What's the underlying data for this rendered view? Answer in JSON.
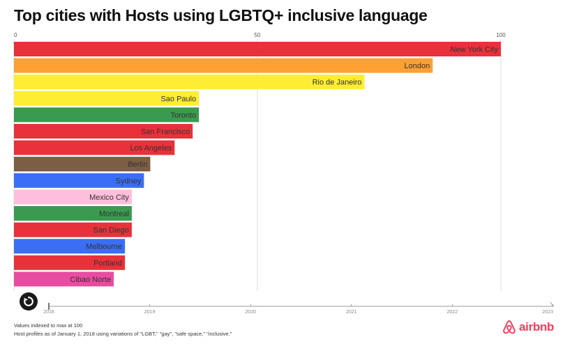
{
  "title": "Top cities with Hosts using LGBTQ+ inclusive language",
  "chart_data": {
    "type": "bar",
    "orientation": "horizontal",
    "title": "Top cities with Hosts using LGBTQ+ inclusive language",
    "xlim": [
      0,
      100
    ],
    "x_ticks": [
      "0",
      "50",
      "100"
    ],
    "categories": [
      "New York City",
      "London",
      "Rio de Janeiro",
      "Sao Paulo",
      "Toronto",
      "San Francisco",
      "Los Angeles",
      "Berlin",
      "Sydney",
      "Mexico City",
      "Montreal",
      "San Diego",
      "Melbourne",
      "Portland",
      "Cibao Norte"
    ],
    "values": [
      100,
      86,
      72,
      38,
      38,
      36.7,
      33,
      28,
      26.7,
      24.2,
      24.2,
      24.2,
      22.8,
      22.8,
      20.5
    ],
    "colors": [
      "#e8313a",
      "#ffa033",
      "#ffed33",
      "#ffed33",
      "#3a9a50",
      "#e8313a",
      "#e8313a",
      "#7c5e44",
      "#3a6ef5",
      "#ffbedb",
      "#3a9a50",
      "#e8313a",
      "#3a6ef5",
      "#e8313a",
      "#e84ca0"
    ],
    "timeline": {
      "labels": [
        "2018",
        "2019",
        "2020",
        "2021",
        "2022",
        "2023"
      ],
      "current_position": 0.0
    }
  },
  "footer": {
    "note1": "Values indexed to max at 100",
    "note2": "Host profiles as of January 1, 2018 using variations of \"LGBT,\" \"gay\", \"safe space,\" \"inclusive.\""
  },
  "brand": {
    "name": "airbnb",
    "color": "#ff385c",
    "icon": "airbnb-logo-icon"
  },
  "controls": {
    "replay_icon": "replay-icon"
  }
}
